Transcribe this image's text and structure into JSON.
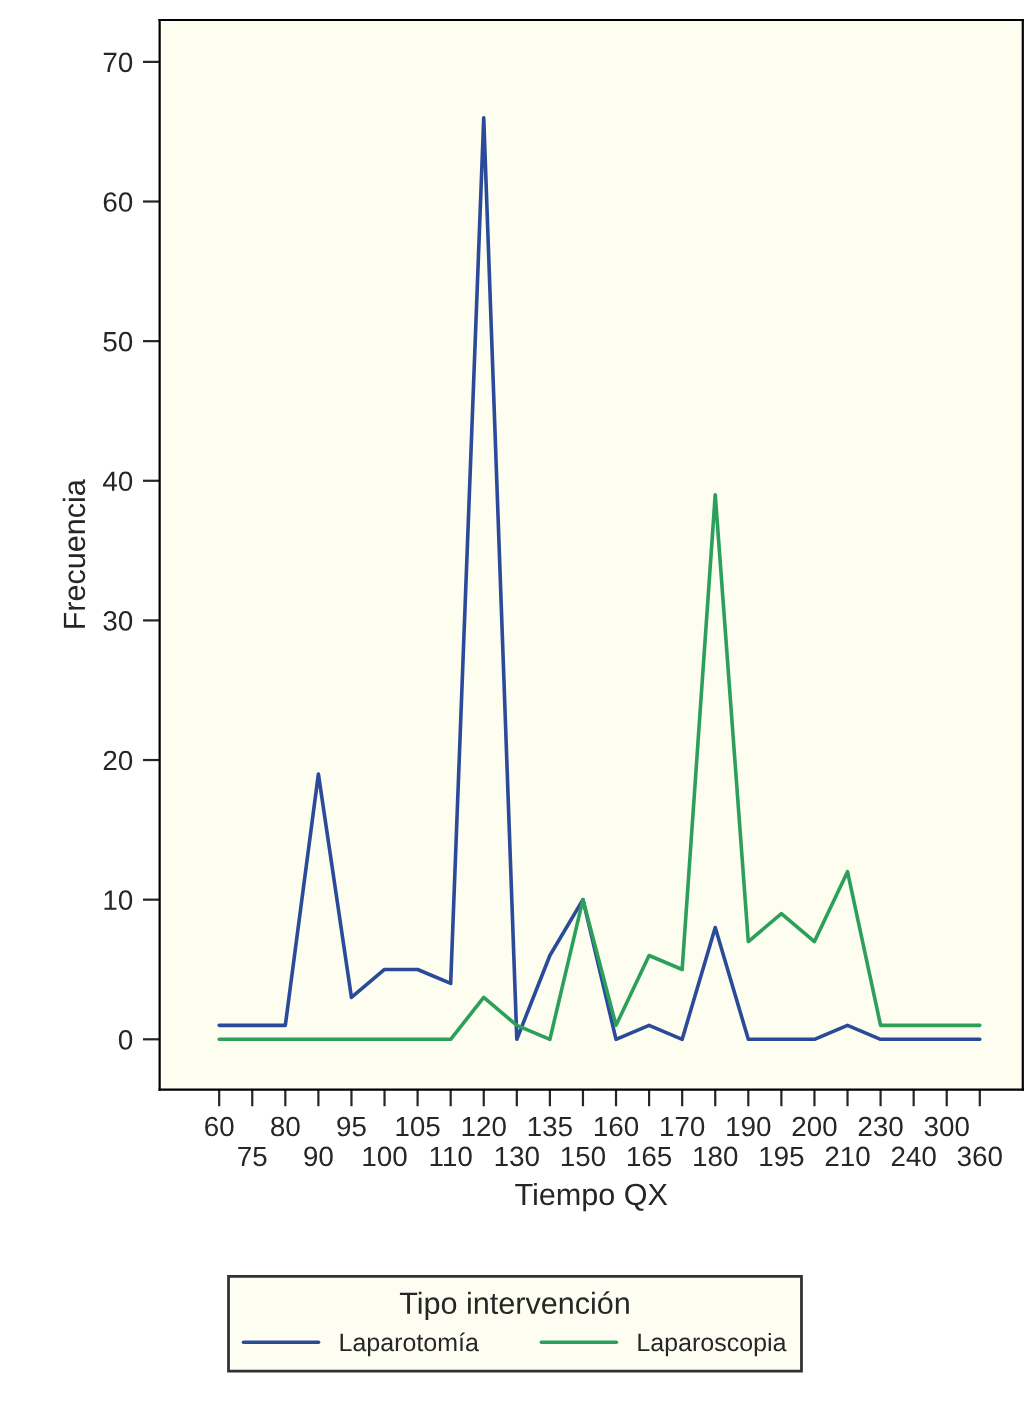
{
  "chart_data": {
    "type": "line",
    "xlabel": "Tiempo QX",
    "ylabel": "Frecuencia",
    "legend_title": "Tipo intervención",
    "categories": [
      "60",
      "75",
      "80",
      "90",
      "95",
      "100",
      "105",
      "110",
      "120",
      "130",
      "135",
      "150",
      "160",
      "165",
      "170",
      "180",
      "190",
      "195",
      "200",
      "210",
      "230",
      "240",
      "300",
      "360"
    ],
    "series": [
      {
        "name": "Laparotomía",
        "color": "#2c4a9a",
        "values": [
          1,
          1,
          1,
          19,
          3,
          5,
          5,
          4,
          66,
          0,
          6,
          10,
          0,
          1,
          0,
          8,
          0,
          0,
          0,
          1,
          0,
          0,
          0,
          0
        ]
      },
      {
        "name": "Laparoscopia",
        "color": "#2ca05a",
        "values": [
          0,
          0,
          0,
          0,
          0,
          0,
          0,
          0,
          3,
          1,
          0,
          10,
          1,
          6,
          5,
          39,
          7,
          9,
          7,
          12,
          1,
          1,
          1,
          1
        ]
      }
    ],
    "ylim": [
      -3.6,
      73
    ],
    "yticks": [
      0,
      10,
      20,
      30,
      40,
      50,
      60,
      70
    ],
    "grid": false,
    "legend": "bottom",
    "marker": "none",
    "line_style": "solid"
  }
}
